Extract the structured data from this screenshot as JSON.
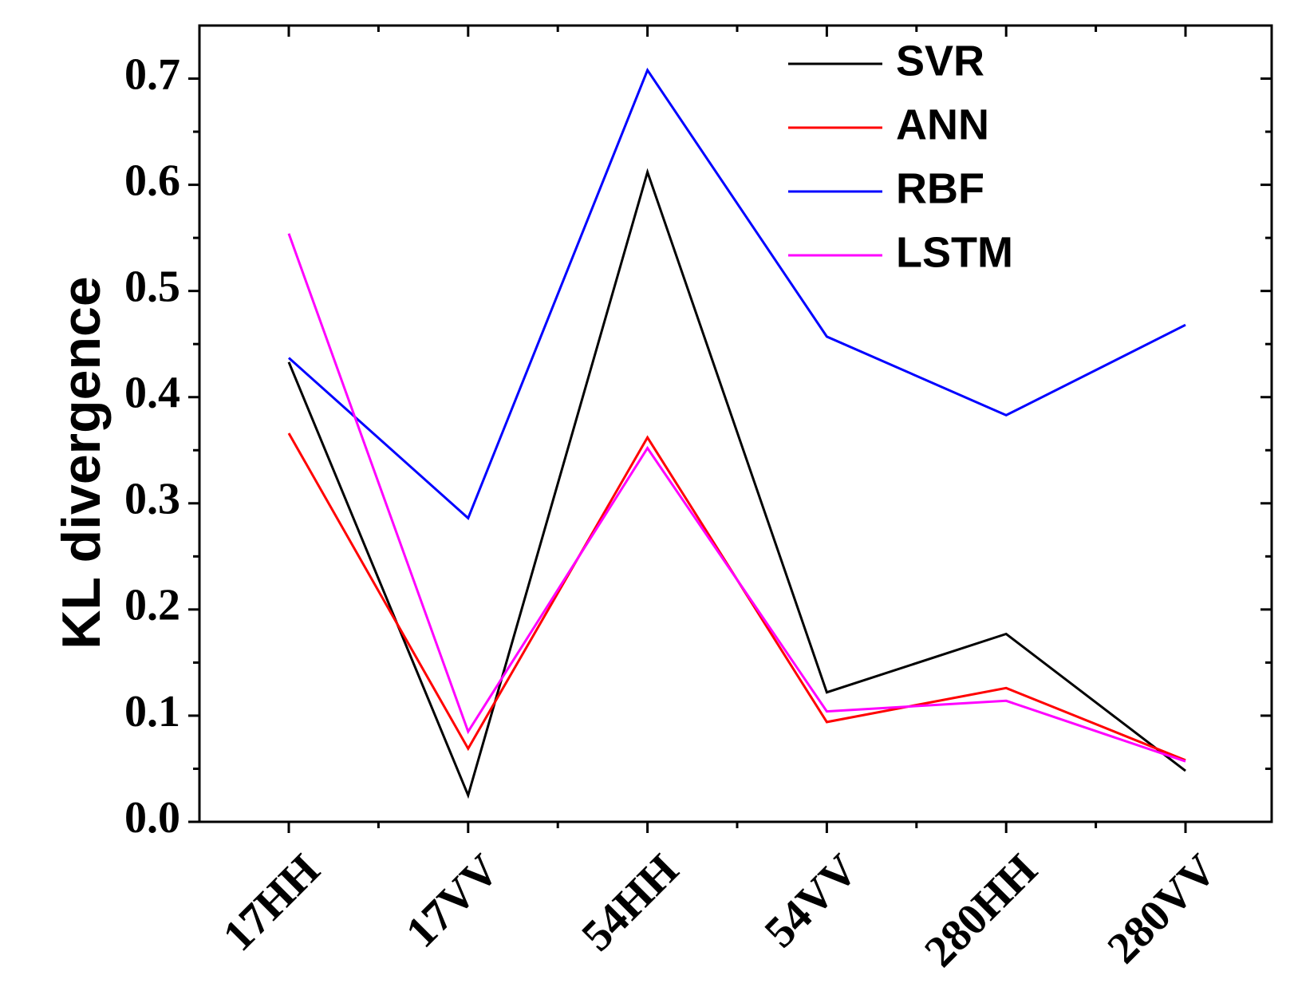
{
  "chart_data": {
    "type": "line",
    "title": "",
    "xlabel": "",
    "ylabel": "KL divergence",
    "categories": [
      "17HH",
      "17VV",
      "54HH",
      "54VV",
      "280HH",
      "280VV"
    ],
    "ylim": [
      0.0,
      0.75
    ],
    "yticks": [
      "0.0",
      "0.1",
      "0.2",
      "0.3",
      "0.4",
      "0.5",
      "0.6",
      "0.7"
    ],
    "grid": false,
    "legend_position": "top-right",
    "series": [
      {
        "name": "SVR",
        "color": "#000000",
        "values": [
          0.433,
          0.025,
          0.612,
          0.122,
          0.177,
          0.048
        ]
      },
      {
        "name": "ANN",
        "color": "#ff0000",
        "values": [
          0.366,
          0.069,
          0.362,
          0.094,
          0.126,
          0.058
        ]
      },
      {
        "name": "RBF",
        "color": "#0000ff",
        "values": [
          0.437,
          0.286,
          0.708,
          0.457,
          0.383,
          0.468
        ]
      },
      {
        "name": "LSTM",
        "color": "#ff00ff",
        "values": [
          0.554,
          0.085,
          0.352,
          0.104,
          0.114,
          0.057
        ]
      }
    ]
  }
}
